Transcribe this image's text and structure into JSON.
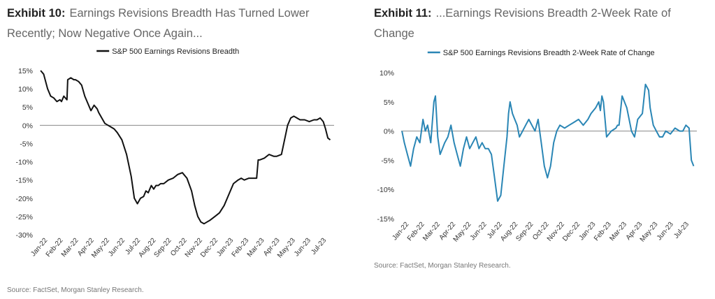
{
  "exhibits": [
    {
      "label": "Exhibit 10:",
      "title_line1": "Earnings Revisions Breadth Has Turned Lower",
      "title_line2": "Recently; Now Negative Once Again...",
      "source": "Source: FactSet, Morgan Stanley Research.",
      "color": "#111111"
    },
    {
      "label": "Exhibit 11:",
      "title_line1": "...Earnings Revisions Breadth 2-Week Rate of",
      "title_line2": "Change",
      "source": "Source: FactSet, Morgan Stanley Research.",
      "color": "#2a86b5"
    }
  ],
  "chart_data": [
    {
      "type": "line",
      "title": "",
      "legend": "S&P 500 Earnings Revisions Breadth",
      "legend_position": "top-center",
      "xlabel": "",
      "ylabel": "",
      "ylim": [
        -30,
        15
      ],
      "yticks": [
        15,
        10,
        5,
        0,
        -5,
        -10,
        -15,
        -20,
        -25,
        -30
      ],
      "ytick_labels": [
        "15%",
        "10%",
        "5%",
        "0%",
        "-5%",
        "-10%",
        "-15%",
        "-20%",
        "-25%",
        "-30%"
      ],
      "xlim": [
        0,
        19
      ],
      "xtick_labels": [
        "Jan-22",
        "Feb-22",
        "Mar-22",
        "Apr-22",
        "May-22",
        "Jun-22",
        "Jul-22",
        "Aug-22",
        "Sep-22",
        "Oct-22",
        "Nov-22",
        "Dec-22",
        "Jan-23",
        "Feb-23",
        "Mar-23",
        "Apr-23",
        "May-23",
        "Jun-23",
        "Jul-23"
      ],
      "zero_line": true,
      "series": [
        {
          "name": "S&P 500 Earnings Revisions Breadth",
          "x": [
            0.05,
            0.25,
            0.5,
            0.7,
            0.9,
            1.1,
            1.3,
            1.4,
            1.55,
            1.75,
            1.8,
            2.0,
            2.2,
            2.3,
            2.5,
            2.7,
            2.9,
            3.1,
            3.3,
            3.5,
            3.7,
            3.8,
            4.0,
            4.2,
            4.4,
            4.6,
            4.8,
            5.0,
            5.3,
            5.6,
            5.9,
            6.1,
            6.3,
            6.5,
            6.7,
            6.85,
            7.0,
            7.1,
            7.2,
            7.35,
            7.5,
            7.65,
            7.8,
            8.0,
            8.3,
            8.6,
            8.9,
            9.2,
            9.5,
            9.8,
            10.0,
            10.2,
            10.4,
            10.6,
            10.8,
            11.0,
            11.3,
            11.6,
            11.9,
            12.2,
            12.5,
            12.8,
            13.0,
            13.2,
            13.5,
            13.8,
            14.0,
            14.1,
            14.2,
            14.5,
            14.8,
            15.1,
            15.3,
            15.6,
            15.7,
            15.9,
            16.0,
            16.2,
            16.4,
            16.6,
            16.8,
            17.1,
            17.4,
            17.7,
            17.9,
            18.1,
            18.3,
            18.45,
            18.6,
            18.75
          ],
          "values": [
            15,
            14,
            10,
            8,
            7.5,
            6.5,
            7,
            6.5,
            8,
            7,
            12.5,
            13,
            12.5,
            12.5,
            12,
            11,
            8,
            6,
            4,
            5.5,
            4.5,
            3.5,
            2,
            0.5,
            0,
            -0.5,
            -1,
            -2,
            -4,
            -8,
            -14,
            -20,
            -21.5,
            -20,
            -19.5,
            -18,
            -18.5,
            -17.5,
            -16.5,
            -17.5,
            -16.5,
            -16.5,
            -16,
            -16,
            -15,
            -14.5,
            -13.5,
            -13,
            -14.5,
            -18,
            -22,
            -25,
            -26.5,
            -27,
            -26.5,
            -26,
            -25,
            -24,
            -22,
            -19,
            -16,
            -15,
            -14.5,
            -15,
            -14.5,
            -14.5,
            -14.5,
            -9.5,
            -9.5,
            -9,
            -8,
            -8.5,
            -8.5,
            -8,
            -6,
            -2,
            0,
            2,
            2.5,
            2,
            1.5,
            1.5,
            1,
            1.5,
            1.5,
            2,
            1,
            -1,
            -3.5,
            -4
          ]
        }
      ]
    },
    {
      "type": "line",
      "title": "",
      "legend": "S&P 500 Earnings Revisions Breadth 2-Week Rate of Change",
      "legend_position": "top-center",
      "xlabel": "",
      "ylabel": "",
      "ylim": [
        -15,
        10
      ],
      "yticks": [
        10,
        5,
        0,
        -5,
        -10,
        -15
      ],
      "ytick_labels": [
        "10%",
        "5%",
        "0%",
        "-5%",
        "-10%",
        "-15%"
      ],
      "xlim": [
        0,
        19
      ],
      "xtick_labels": [
        "Jan-22",
        "Feb-22",
        "Mar-22",
        "Apr-22",
        "May-22",
        "Jun-22",
        "Jul-22",
        "Aug-22",
        "Sep-22",
        "Oct-22",
        "Nov-22",
        "Dec-22",
        "Jan-23",
        "Feb-23",
        "Mar-23",
        "Apr-23",
        "May-23",
        "Jun-23",
        "Jul-23"
      ],
      "zero_line": true,
      "series": [
        {
          "name": "S&P 500 Earnings Revisions Breadth 2-Week Rate of Change",
          "x": [
            0.05,
            0.2,
            0.4,
            0.6,
            0.8,
            1.0,
            1.2,
            1.4,
            1.55,
            1.7,
            1.9,
            2.1,
            2.2,
            2.35,
            2.5,
            2.65,
            2.8,
            3.0,
            3.2,
            3.4,
            3.6,
            3.8,
            4.0,
            4.2,
            4.4,
            4.6,
            4.8,
            5.0,
            5.2,
            5.4,
            5.6,
            5.8,
            6.0,
            6.2,
            6.4,
            6.6,
            6.8,
            6.9,
            7.0,
            7.15,
            7.3,
            7.45,
            7.6,
            7.8,
            8.0,
            8.2,
            8.4,
            8.6,
            8.8,
            9.0,
            9.2,
            9.4,
            9.5,
            9.6,
            9.8,
            10.0,
            10.2,
            10.5,
            10.8,
            11.1,
            11.4,
            11.7,
            12.0,
            12.2,
            12.5,
            12.7,
            12.8,
            12.9,
            13.0,
            13.2,
            13.5,
            13.8,
            13.9,
            14.0,
            14.2,
            14.5,
            14.8,
            15.0,
            15.2,
            15.5,
            15.7,
            15.9,
            16.0,
            16.2,
            16.4,
            16.6,
            16.8,
            17.0,
            17.3,
            17.6,
            17.9,
            18.1,
            18.3,
            18.5,
            18.65,
            18.8
          ],
          "values": [
            0,
            -2,
            -4,
            -6,
            -3,
            -1,
            -2,
            2,
            0,
            1,
            -2,
            5,
            6,
            -1,
            -4,
            -3,
            -2,
            -1,
            1,
            -2,
            -4,
            -6,
            -3,
            -1,
            -3,
            -2,
            -1,
            -3,
            -2,
            -3,
            -3,
            -4,
            -8,
            -12,
            -11,
            -6,
            -1,
            3,
            5,
            3,
            2,
            1,
            -1,
            0,
            1,
            2,
            1,
            0,
            2,
            -2,
            -6,
            -8,
            -7,
            -6,
            -2,
            0,
            1,
            0.5,
            1,
            1.5,
            2,
            1,
            2,
            3,
            4,
            5,
            3.5,
            6,
            5,
            -1,
            0,
            0.5,
            1,
            1,
            6,
            4,
            0,
            -1,
            2,
            3,
            8,
            7,
            4,
            1,
            0,
            -1,
            -1,
            0,
            -0.5,
            0.5,
            0,
            0,
            1,
            0.5,
            -5,
            -6
          ]
        }
      ]
    }
  ]
}
